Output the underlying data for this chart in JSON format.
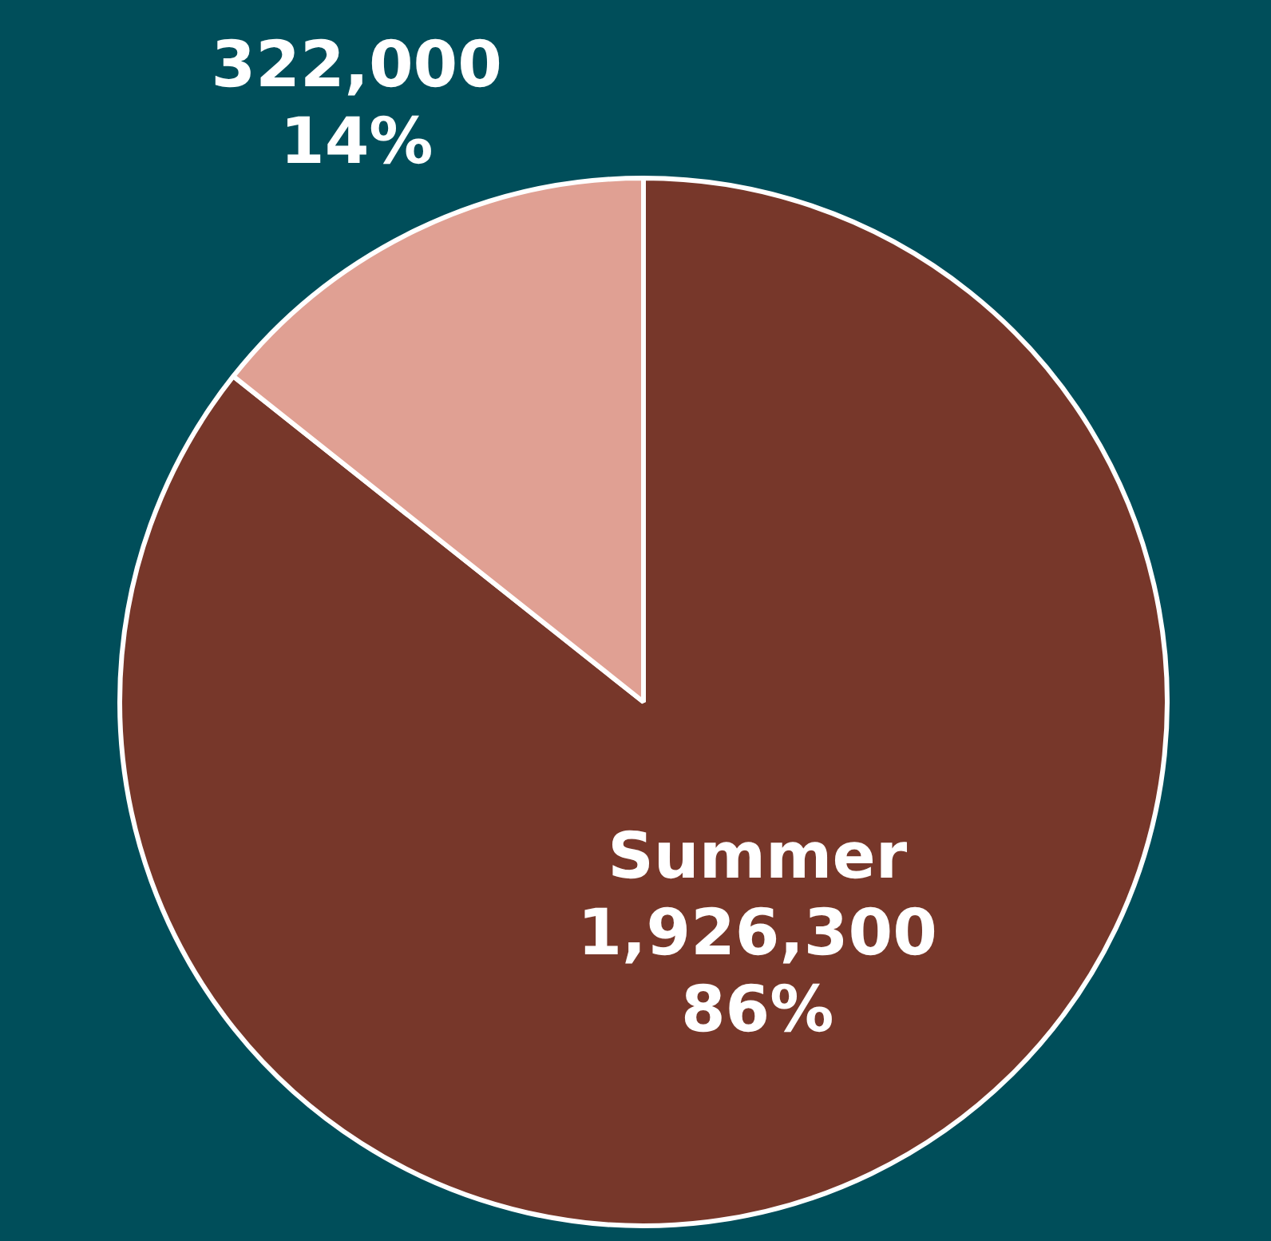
{
  "chart_data": {
    "type": "pie",
    "categories": [
      "Summer",
      null
    ],
    "values": [
      1926300,
      322000
    ],
    "colors": [
      "#77372a",
      "#e0a093"
    ],
    "value_labels": [
      "1,926,300\n86%",
      "322,000\n14%"
    ],
    "legend": false
  }
}
